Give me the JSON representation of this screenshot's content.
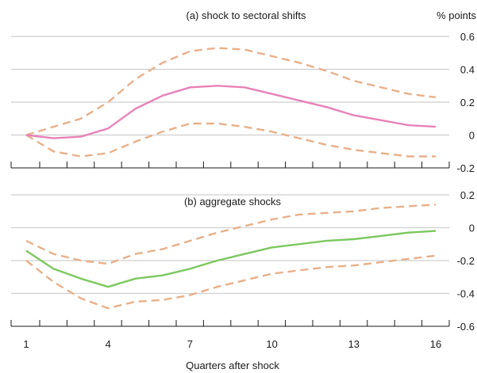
{
  "colors": {
    "sectoral_line": "#e882b8",
    "aggregate_line": "#7cc860",
    "band": "#e8b08a",
    "grid": "#cfcfcf",
    "axis": "#1a1a1a"
  },
  "unit_label": "% points",
  "xlabel": "Quarters after shock",
  "chart_data": [
    {
      "type": "line",
      "title": "(a) shock to sectoral shifts",
      "ylabel": "% points",
      "xlabel": "",
      "ylim": [
        -0.2,
        0.6
      ],
      "yticks": [
        "-0.2",
        "0",
        "0.2",
        "0.4",
        "0.6"
      ],
      "grid": true,
      "x": [
        1,
        2,
        3,
        4,
        5,
        6,
        7,
        8,
        9,
        10,
        11,
        12,
        13,
        14,
        15,
        16
      ],
      "series": [
        {
          "role": "estimate",
          "values": [
            0.0,
            -0.02,
            -0.01,
            0.04,
            0.16,
            0.24,
            0.29,
            0.3,
            0.29,
            0.25,
            0.21,
            0.17,
            0.12,
            0.09,
            0.06,
            0.05
          ]
        },
        {
          "role": "upper",
          "values": [
            0.0,
            0.05,
            0.1,
            0.2,
            0.34,
            0.44,
            0.51,
            0.53,
            0.52,
            0.48,
            0.44,
            0.39,
            0.33,
            0.29,
            0.25,
            0.23
          ]
        },
        {
          "role": "lower",
          "values": [
            0.0,
            -0.1,
            -0.13,
            -0.11,
            -0.04,
            0.02,
            0.07,
            0.07,
            0.05,
            0.02,
            -0.02,
            -0.06,
            -0.09,
            -0.11,
            -0.13,
            -0.13
          ]
        }
      ]
    },
    {
      "type": "line",
      "title": "(b) aggregate shocks",
      "xlabel": "Quarters after shock",
      "ylabel": "",
      "ylim": [
        -0.6,
        0.2
      ],
      "yticks": [
        "-0.6",
        "-0.4",
        "-0.2",
        "0",
        "0.2"
      ],
      "xticks": [
        "1",
        "4",
        "7",
        "10",
        "13",
        "16"
      ],
      "grid": true,
      "x": [
        1,
        2,
        3,
        4,
        5,
        6,
        7,
        8,
        9,
        10,
        11,
        12,
        13,
        14,
        15,
        16
      ],
      "series": [
        {
          "role": "estimate",
          "values": [
            -0.14,
            -0.25,
            -0.31,
            -0.36,
            -0.31,
            -0.29,
            -0.25,
            -0.2,
            -0.16,
            -0.12,
            -0.1,
            -0.08,
            -0.07,
            -0.05,
            -0.03,
            -0.02
          ]
        },
        {
          "role": "upper",
          "values": [
            -0.08,
            -0.16,
            -0.2,
            -0.22,
            -0.16,
            -0.13,
            -0.08,
            -0.03,
            0.01,
            0.05,
            0.08,
            0.09,
            0.1,
            0.12,
            0.13,
            0.14
          ]
        },
        {
          "role": "lower",
          "values": [
            -0.2,
            -0.33,
            -0.43,
            -0.49,
            -0.45,
            -0.44,
            -0.41,
            -0.36,
            -0.32,
            -0.28,
            -0.26,
            -0.24,
            -0.23,
            -0.21,
            -0.19,
            -0.17
          ]
        }
      ]
    }
  ]
}
